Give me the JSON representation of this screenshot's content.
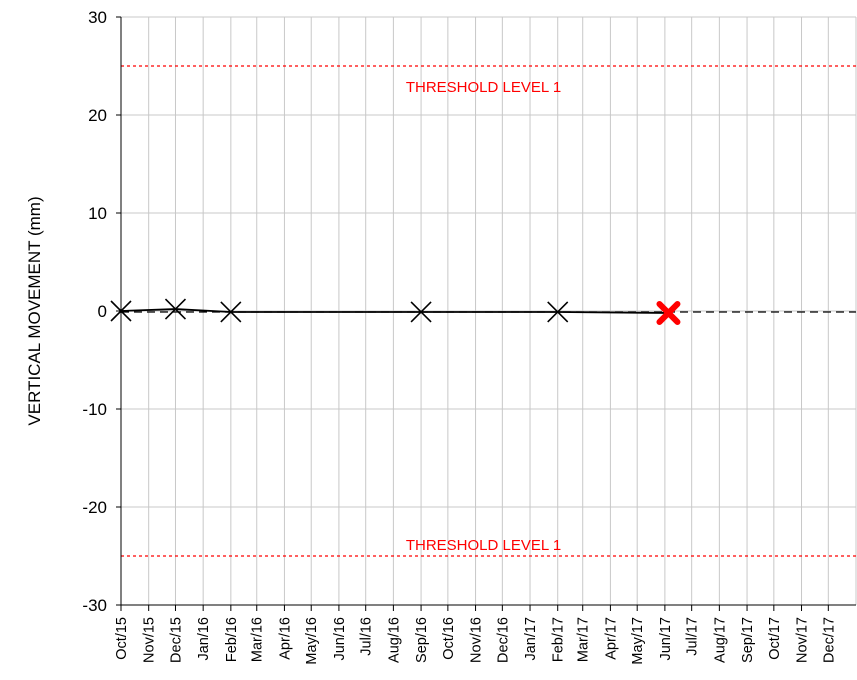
{
  "chart_data": {
    "type": "line",
    "title": "",
    "xlabel": "",
    "ylabel": "VERTICAL MOVEMENT (mm)",
    "ylim": [
      -30,
      30
    ],
    "yticks": [
      "30",
      "20",
      "10",
      "0",
      "-10",
      "-20",
      "-30"
    ],
    "xlim": [
      "2015-10-01",
      "2018-01-01"
    ],
    "xticks": [
      "Oct/15",
      "Nov/15",
      "Dec/15",
      "Jan/16",
      "Feb/16",
      "Mar/16",
      "Apr/16",
      "May/16",
      "Jun/16",
      "Jul/16",
      "Aug/16",
      "Sep/16",
      "Oct/16",
      "Nov/16",
      "Dec/16",
      "Jan/17",
      "Feb/17",
      "Mar/17",
      "Apr/17",
      "May/17",
      "Jun/17",
      "Jul/17",
      "Aug/17",
      "Sep/17",
      "Oct/17",
      "Nov/17",
      "Dec/17"
    ],
    "grid": true,
    "series": [
      {
        "x": [
          "2015-10-01",
          "2015-12-01",
          "2016-02-01",
          "2016-09-01",
          "2017-02-01",
          "2017-06-05"
        ],
        "y": [
          0.0,
          0.2,
          -0.1,
          -0.1,
          -0.1,
          -0.2
        ],
        "color": "#000000",
        "marker": "x"
      }
    ],
    "latest_point": {
      "x": "2017-06-05",
      "y": -0.2,
      "color": "#ff0000",
      "marker": "x"
    },
    "trend_line": {
      "y": 0.0,
      "style": "dashed",
      "color": "#000000"
    },
    "thresholds": [
      {
        "label": "THRESHOLD LEVEL 1",
        "y": 25,
        "color": "#ff0000",
        "style": "dotted"
      },
      {
        "label": "THRESHOLD LEVEL 1",
        "y": -25,
        "color": "#ff0000",
        "style": "dotted"
      }
    ]
  }
}
